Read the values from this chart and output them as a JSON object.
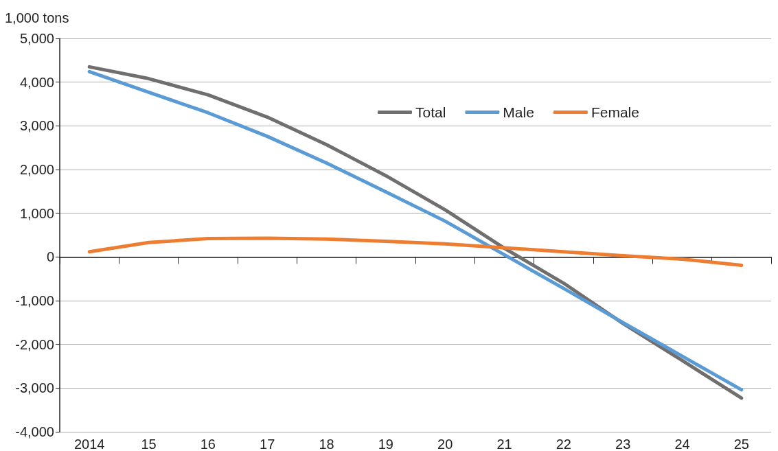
{
  "chart_data": {
    "type": "line",
    "ylabel": "1,000 tons",
    "categories": [
      "2014",
      "15",
      "16",
      "17",
      "18",
      "19",
      "20",
      "21",
      "22",
      "23",
      "24",
      "25"
    ],
    "series": [
      {
        "name": "Total",
        "color": "#716e6e",
        "values": [
          4350,
          4080,
          3710,
          3200,
          2570,
          1860,
          1080,
          200,
          -600,
          -1520,
          -2370,
          -3230
        ]
      },
      {
        "name": "Male",
        "color": "#5b9bd5",
        "values": [
          4240,
          3770,
          3300,
          2760,
          2150,
          1490,
          820,
          50,
          -720,
          -1500,
          -2270,
          -3040
        ]
      },
      {
        "name": "Female",
        "color": "#ed7d31",
        "values": [
          120,
          330,
          420,
          430,
          410,
          360,
          300,
          210,
          120,
          30,
          -50,
          -190
        ]
      }
    ],
    "ylim": [
      -4000,
      5000
    ],
    "yticks": [
      {
        "value": -4000,
        "label": "-4,000"
      },
      {
        "value": -3000,
        "label": "-3,000"
      },
      {
        "value": -2000,
        "label": "-2,000"
      },
      {
        "value": -1000,
        "label": "-1,000"
      },
      0,
      {
        "value": 1000,
        "label": "1,000"
      },
      {
        "value": 2000,
        "label": "2,000"
      },
      {
        "value": 3000,
        "label": "3,000"
      },
      {
        "value": 4000,
        "label": "4,000"
      },
      {
        "value": 5000,
        "label": "5,000"
      }
    ],
    "grid": "y",
    "legend": "top right",
    "marker": "none",
    "line_style": "solid"
  }
}
